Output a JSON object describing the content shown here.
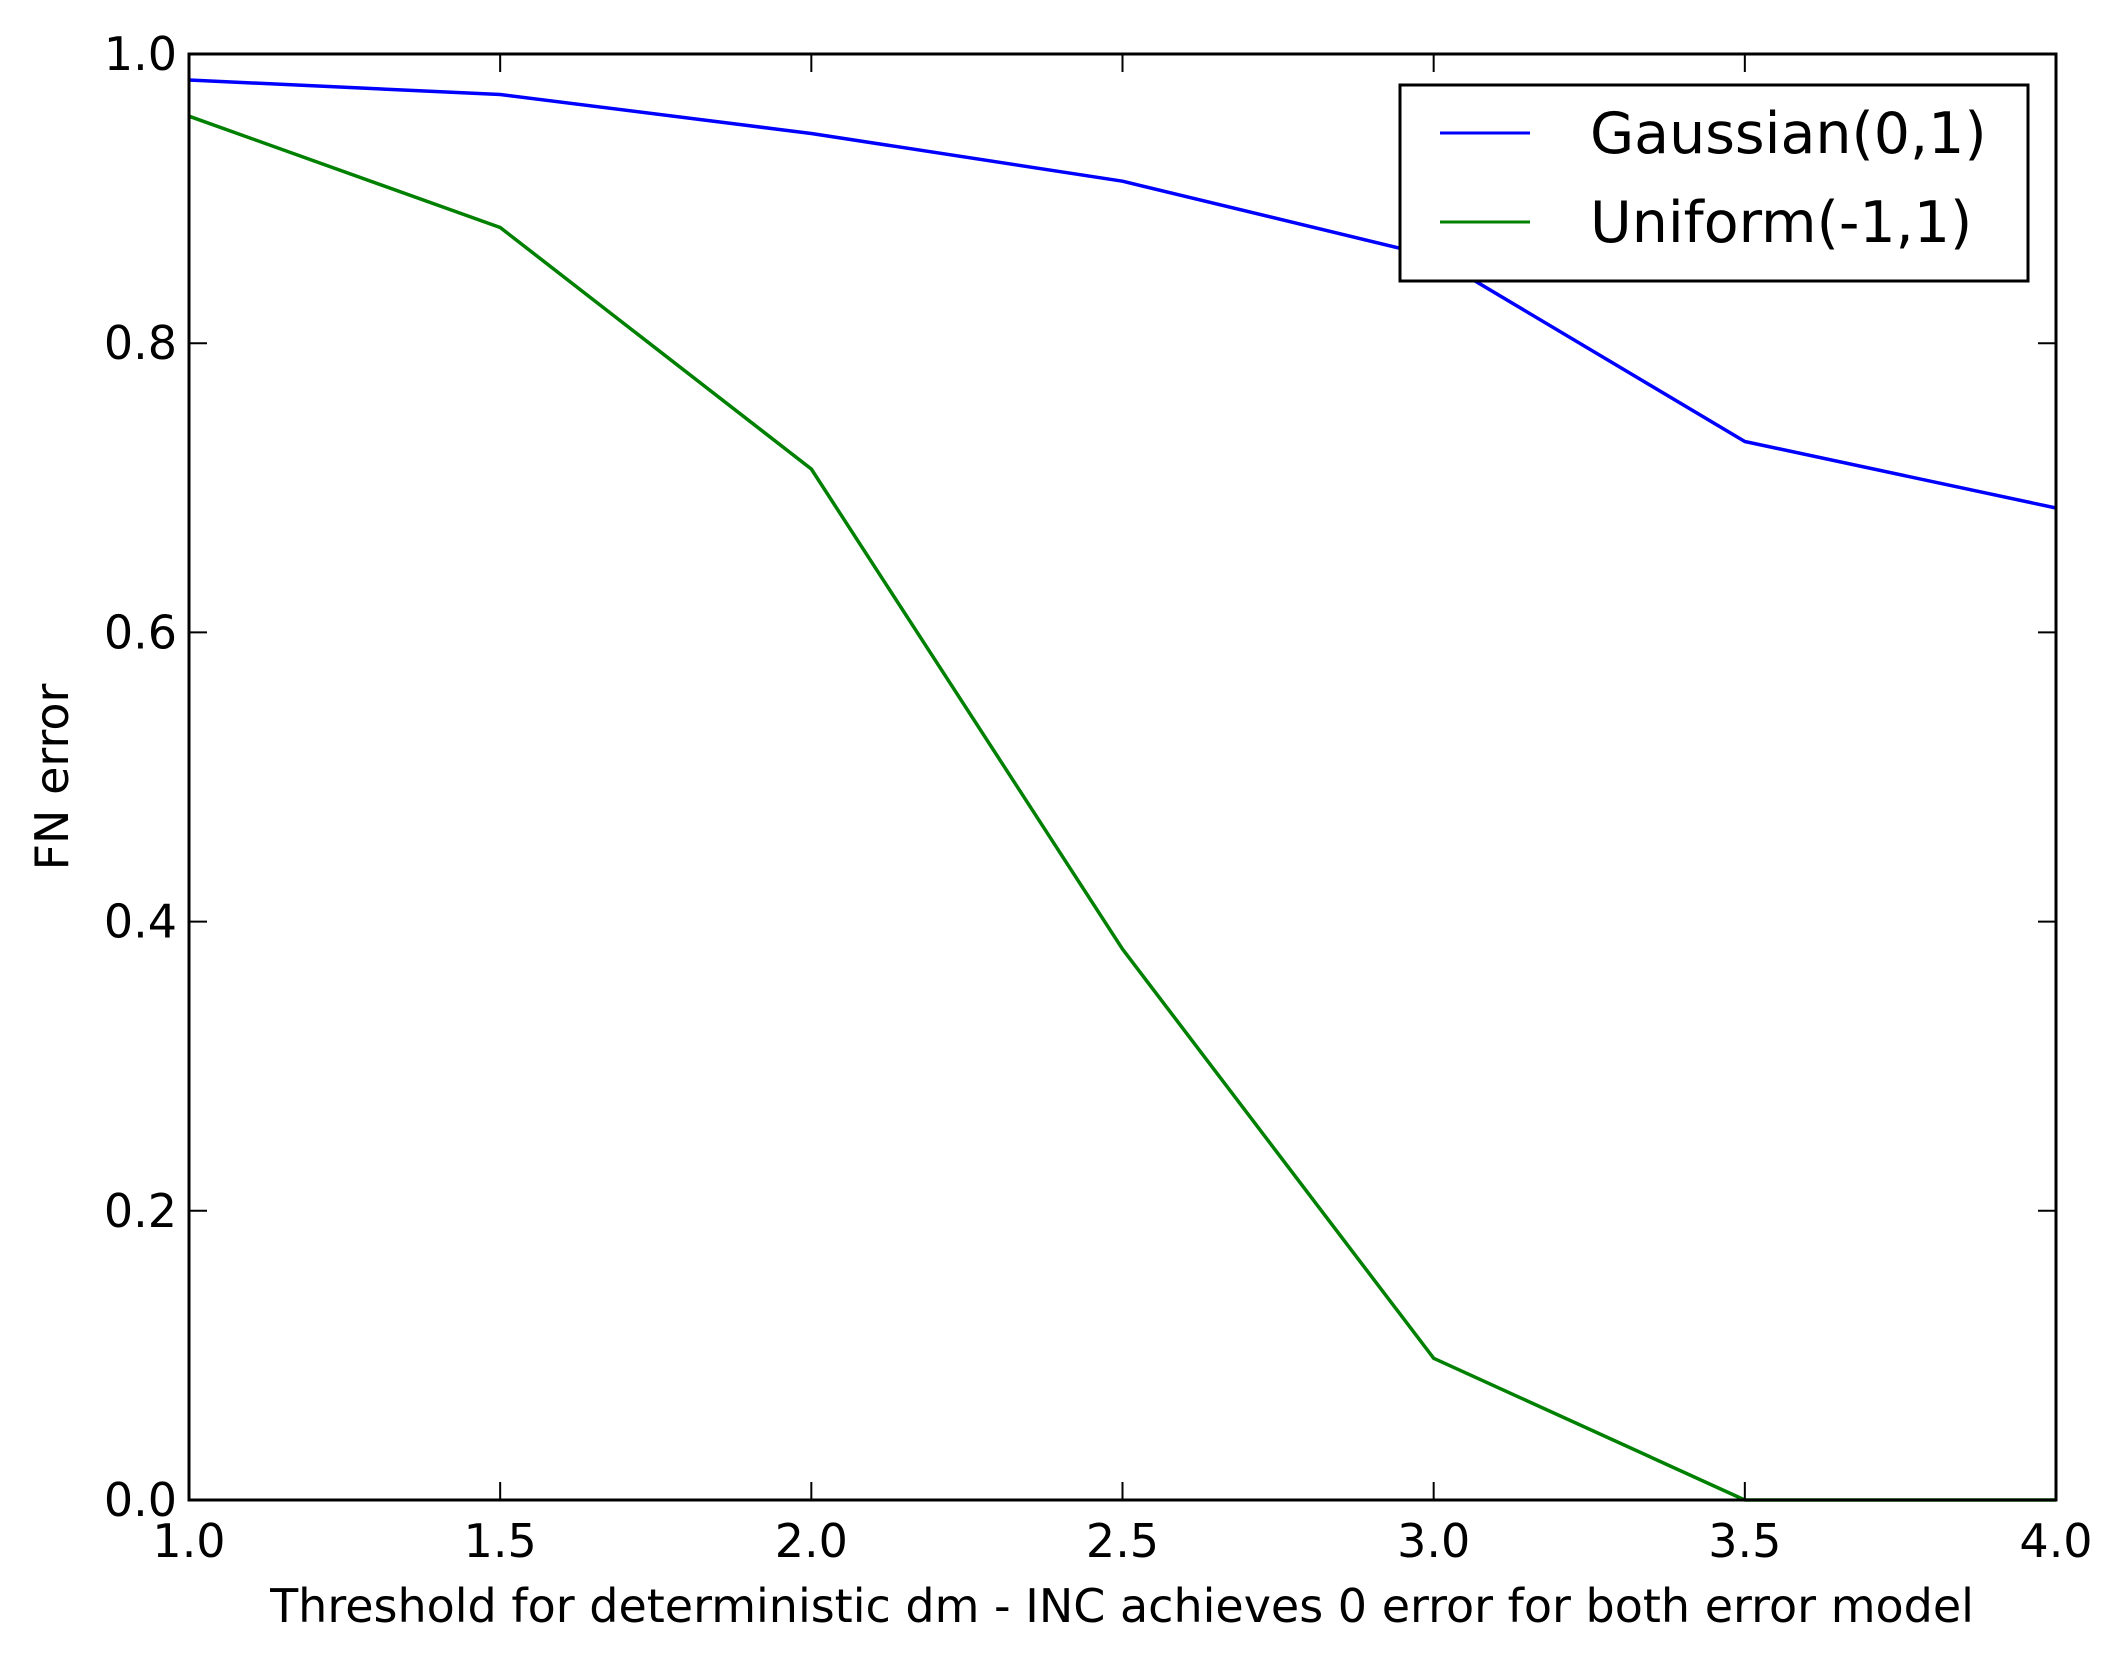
{
  "chart_data": {
    "type": "line",
    "x": [
      1.0,
      1.5,
      2.0,
      2.5,
      3.0,
      3.5,
      4.0
    ],
    "series": [
      {
        "name": "Gaussian(0,1)",
        "color": "#0000ff",
        "values": [
          0.982,
          0.972,
          0.945,
          0.912,
          0.86,
          0.732,
          0.686
        ]
      },
      {
        "name": "Uniform(-1,1)",
        "color": "#008000",
        "values": [
          0.957,
          0.88,
          0.713,
          0.381,
          0.098,
          0.0,
          0.0
        ]
      }
    ],
    "xlabel": "Threshold for deterministic dm - INC achieves 0 error for both error model",
    "ylabel": "FN error",
    "xlim": [
      1.0,
      4.0
    ],
    "ylim": [
      0.0,
      1.0
    ],
    "xticks": [
      1.0,
      1.5,
      2.0,
      2.5,
      3.0,
      3.5,
      4.0
    ],
    "xtick_labels": [
      "1.0",
      "1.5",
      "2.0",
      "2.5",
      "3.0",
      "3.5",
      "4.0"
    ],
    "yticks": [
      0.0,
      0.2,
      0.4,
      0.6,
      0.8,
      1.0
    ],
    "ytick_labels": [
      "0.0",
      "0.2",
      "0.4",
      "0.6",
      "0.8",
      "1.0"
    ],
    "grid": false,
    "legend_position": "top-right"
  }
}
